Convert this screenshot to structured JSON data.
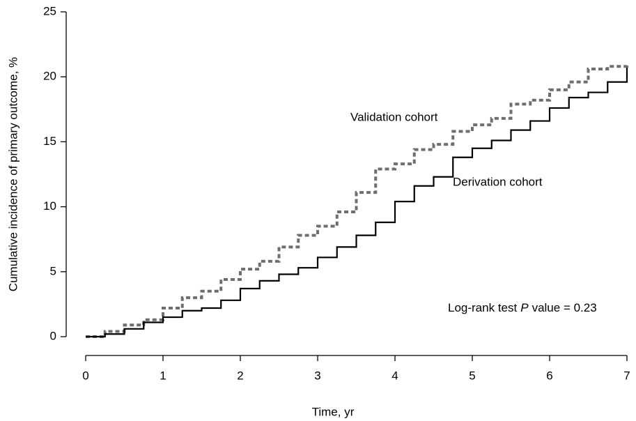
{
  "chart_data": {
    "type": "step",
    "x_label": "Time, yr",
    "y_label": "Cumulative incidence of primary outcome, %",
    "x": [
      0,
      0.25,
      0.5,
      0.75,
      1,
      1.25,
      1.5,
      1.75,
      2,
      2.25,
      2.5,
      2.75,
      3,
      3.25,
      3.5,
      3.75,
      4,
      4.25,
      4.5,
      4.75,
      5,
      5.25,
      5.5,
      5.75,
      6,
      6.25,
      6.5,
      6.75,
      7
    ],
    "series": [
      {
        "name": "Validation cohort",
        "color": "#6e6e6e",
        "dashed": true,
        "values": [
          0,
          0.4,
          0.9,
          1.3,
          2.2,
          3.0,
          3.5,
          4.4,
          5.2,
          5.8,
          6.9,
          7.8,
          8.5,
          9.6,
          11.1,
          12.9,
          13.3,
          14.4,
          14.8,
          15.8,
          16.3,
          16.8,
          17.9,
          18.2,
          19.0,
          19.6,
          20.6,
          20.8,
          20.9
        ]
      },
      {
        "name": "Derivation cohort",
        "color": "#000000",
        "dashed": false,
        "values": [
          0,
          0.2,
          0.6,
          1.1,
          1.5,
          2.0,
          2.2,
          2.8,
          3.7,
          4.3,
          4.8,
          5.3,
          6.1,
          6.9,
          7.8,
          8.8,
          10.4,
          11.6,
          12.3,
          13.8,
          14.5,
          15.1,
          15.9,
          16.6,
          17.6,
          18.4,
          18.8,
          19.6,
          20.7
        ]
      }
    ],
    "annotation": [
      "Log-rank test",
      "P",
      "value = 0.23"
    ],
    "xlim": [
      0,
      7
    ],
    "xticks": [
      0,
      1,
      2,
      3,
      4,
      5,
      6,
      7
    ],
    "ylim": [
      0,
      25
    ],
    "yticks": [
      0,
      5,
      10,
      15,
      20,
      25
    ],
    "grid": false
  }
}
